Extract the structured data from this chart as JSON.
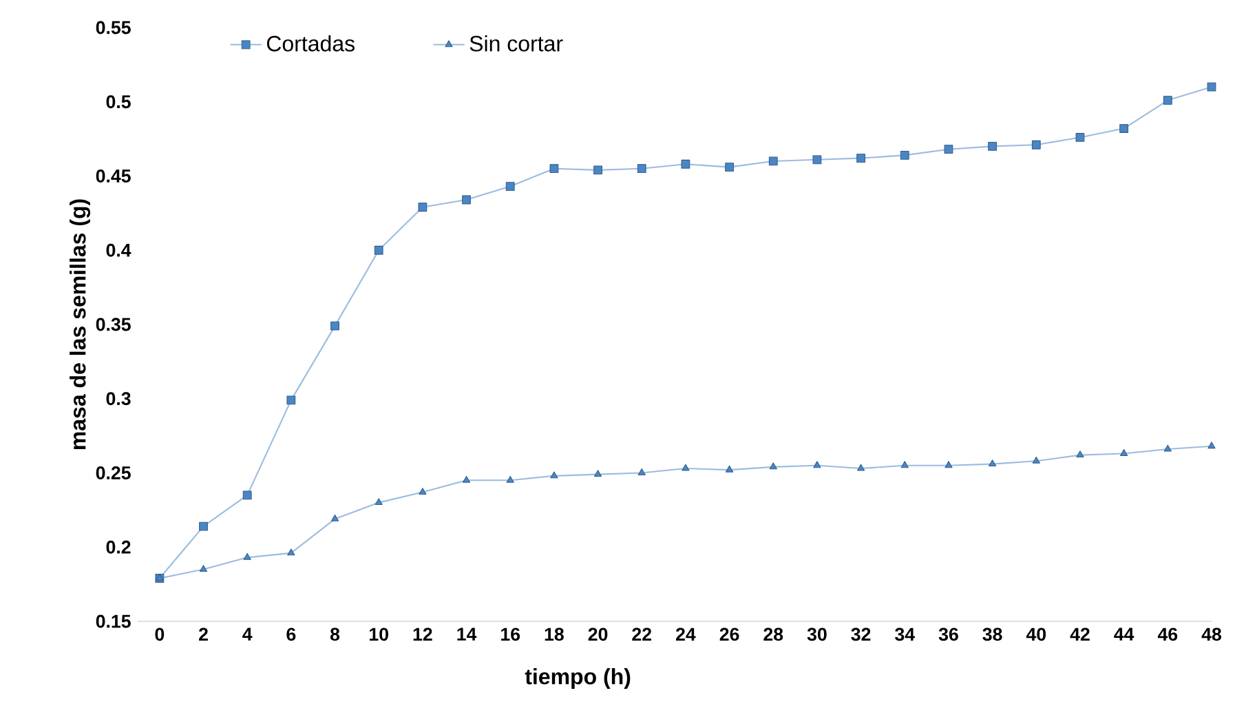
{
  "chart_data": {
    "type": "line",
    "xlabel": "tiempo (h)",
    "ylabel": "masa de las semillas (g)",
    "x": [
      0,
      2,
      4,
      6,
      8,
      10,
      12,
      14,
      16,
      18,
      20,
      22,
      24,
      26,
      28,
      30,
      32,
      34,
      36,
      38,
      40,
      42,
      44,
      46,
      48
    ],
    "xlim": [
      -1,
      48
    ],
    "xticks": [
      0,
      2,
      4,
      6,
      8,
      10,
      12,
      14,
      16,
      18,
      20,
      22,
      24,
      26,
      28,
      30,
      32,
      34,
      36,
      38,
      40,
      42,
      44,
      46,
      48
    ],
    "ylim": [
      0.15,
      0.55
    ],
    "yticks": [
      0.15,
      0.2,
      0.25,
      0.3,
      0.35,
      0.4,
      0.45,
      0.5,
      0.55
    ],
    "legend": "top left",
    "grid": false,
    "series": [
      {
        "name": "Cortadas",
        "color": "#4a86c5",
        "marker": "square",
        "values": [
          0.179,
          0.214,
          0.235,
          0.299,
          0.349,
          0.4,
          0.429,
          0.434,
          0.443,
          0.455,
          0.454,
          0.455,
          0.458,
          0.456,
          0.46,
          0.461,
          0.462,
          0.464,
          0.468,
          0.47,
          0.471,
          0.476,
          0.482,
          0.501,
          0.51
        ]
      },
      {
        "name": "Sin cortar",
        "color": "#4a86c5",
        "marker": "triangle",
        "values": [
          0.179,
          0.185,
          0.193,
          0.196,
          0.219,
          0.23,
          0.237,
          0.245,
          0.245,
          0.248,
          0.249,
          0.25,
          0.253,
          0.252,
          0.254,
          0.255,
          0.253,
          0.255,
          0.255,
          0.256,
          0.258,
          0.262,
          0.263,
          0.266,
          0.268
        ]
      }
    ]
  }
}
